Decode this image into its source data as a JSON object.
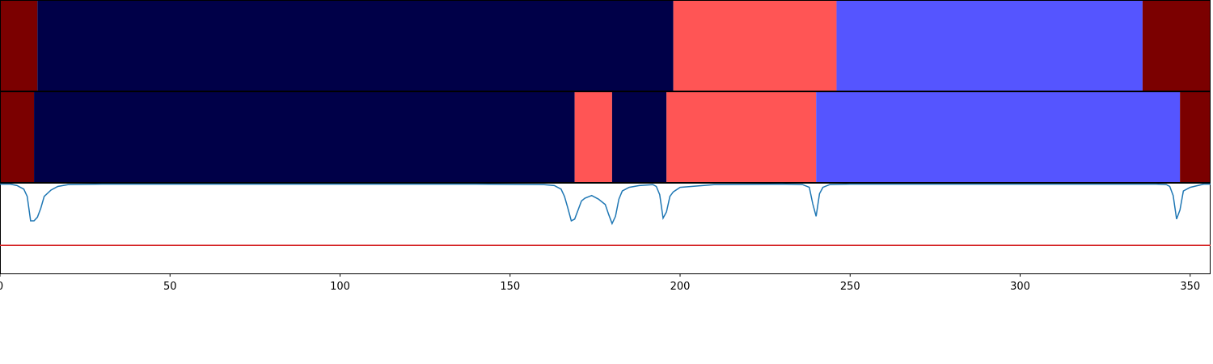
{
  "chart_data": {
    "type": "area",
    "x_range": [
      0,
      356
    ],
    "x_ticks": [
      0,
      50,
      100,
      150,
      200,
      250,
      300,
      350
    ],
    "x_tick_labels": [
      "0",
      "50",
      "100",
      "150",
      "200",
      "250",
      "300",
      "350"
    ],
    "grid": false,
    "colors": {
      "dark_red": "#7b0000",
      "navy": "#000048",
      "salmon": "#ff5555",
      "periwinkle": "#5555ff",
      "curve": "#1f77b4",
      "threshold": "#d62728"
    },
    "segment_rows": [
      {
        "segments": [
          {
            "start": 0,
            "end": 11,
            "color": "dark_red"
          },
          {
            "start": 11,
            "end": 198,
            "color": "navy"
          },
          {
            "start": 198,
            "end": 246,
            "color": "salmon"
          },
          {
            "start": 246,
            "end": 336,
            "color": "periwinkle"
          },
          {
            "start": 336,
            "end": 356,
            "color": "dark_red"
          }
        ]
      },
      {
        "segments": [
          {
            "start": 0,
            "end": 10,
            "color": "dark_red"
          },
          {
            "start": 10,
            "end": 169,
            "color": "navy"
          },
          {
            "start": 169,
            "end": 180,
            "color": "salmon"
          },
          {
            "start": 180,
            "end": 196,
            "color": "navy"
          },
          {
            "start": 196,
            "end": 240,
            "color": "salmon"
          },
          {
            "start": 240,
            "end": 347,
            "color": "periwinkle"
          },
          {
            "start": 347,
            "end": 356,
            "color": "dark_red"
          }
        ]
      }
    ],
    "curve_panel": {
      "y_range": [
        0,
        1
      ],
      "threshold": 0.31,
      "curve": {
        "x": [
          0,
          3,
          5,
          7,
          8,
          9,
          10,
          11,
          12,
          13,
          15,
          17,
          20,
          30,
          60,
          100,
          140,
          160,
          163,
          165,
          166,
          167,
          168,
          169,
          170,
          171,
          172,
          174,
          176,
          178,
          179,
          180,
          181,
          182,
          183,
          185,
          188,
          192,
          193,
          194,
          195,
          196,
          197,
          198,
          200,
          210,
          230,
          236,
          238,
          239,
          240,
          241,
          242,
          244,
          250,
          300,
          340,
          343,
          344,
          345,
          346,
          347,
          348,
          350,
          354,
          356
        ],
        "y": [
          0.985,
          0.985,
          0.97,
          0.93,
          0.85,
          0.58,
          0.58,
          0.62,
          0.72,
          0.85,
          0.92,
          0.96,
          0.98,
          0.985,
          0.985,
          0.985,
          0.985,
          0.98,
          0.97,
          0.93,
          0.85,
          0.72,
          0.58,
          0.6,
          0.7,
          0.8,
          0.83,
          0.86,
          0.82,
          0.76,
          0.65,
          0.55,
          0.63,
          0.82,
          0.91,
          0.95,
          0.97,
          0.98,
          0.96,
          0.87,
          0.61,
          0.68,
          0.85,
          0.9,
          0.95,
          0.98,
          0.985,
          0.98,
          0.95,
          0.77,
          0.63,
          0.88,
          0.95,
          0.98,
          0.985,
          0.985,
          0.985,
          0.98,
          0.96,
          0.86,
          0.6,
          0.7,
          0.91,
          0.95,
          0.985,
          0.985
        ]
      }
    }
  }
}
